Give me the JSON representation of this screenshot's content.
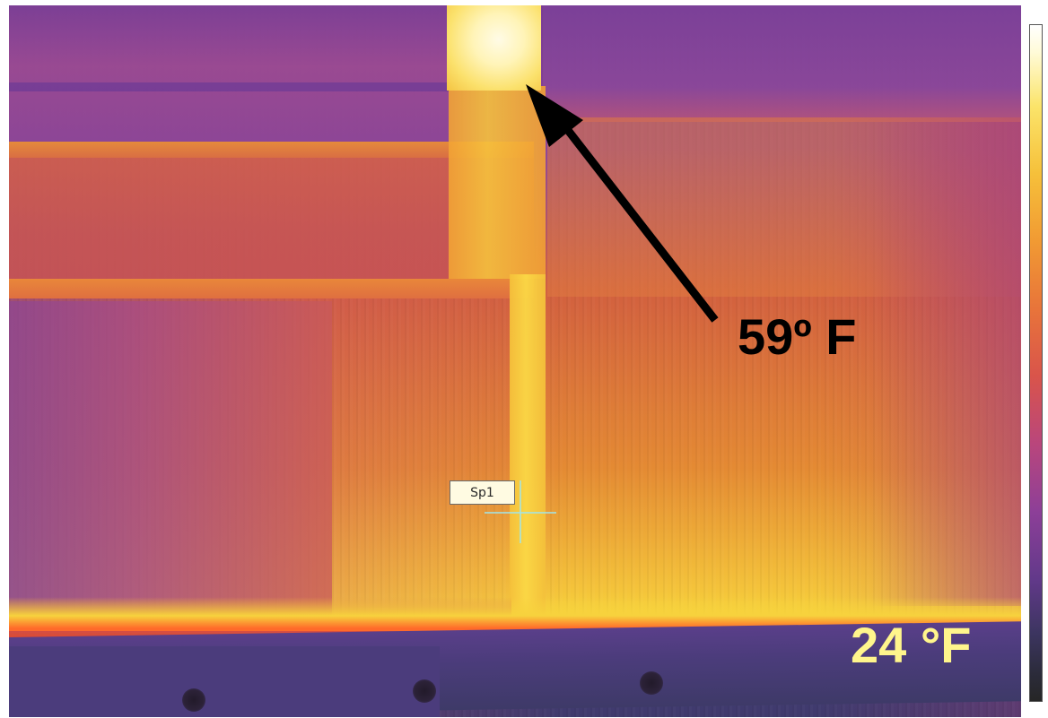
{
  "image": {
    "description_type": "infrared thermal image",
    "palette": "iron",
    "palette_colors": [
      "#262626",
      "#62398a",
      "#b9467c",
      "#e8743a",
      "#f6c03a",
      "#fffbd8",
      "#ffffff"
    ]
  },
  "annotations": {
    "hot_label": "59º F",
    "cold_label": "24 °F",
    "hot_label_color": "#000000",
    "cold_label_color": "#fff58c",
    "arrow_icon": "arrow-icon"
  },
  "spot_marker": {
    "label": "Sp1",
    "icon": "crosshair-icon"
  },
  "color_scale": {
    "orientation": "vertical",
    "top_color": "#ffffff",
    "bottom_color": "#262626"
  }
}
